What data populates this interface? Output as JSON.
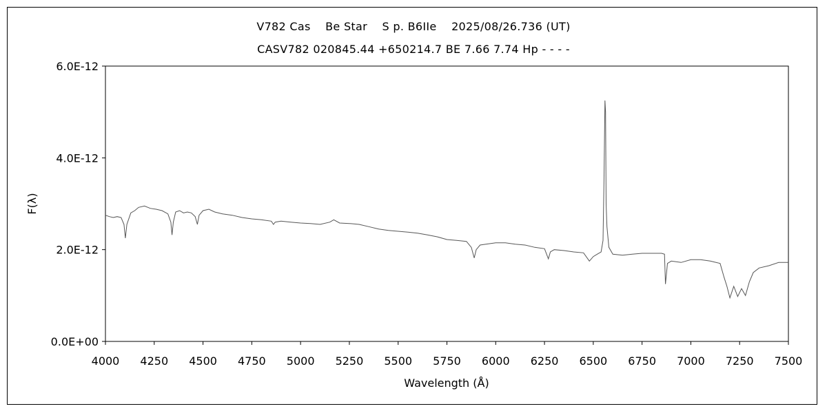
{
  "chart_data": {
    "type": "line",
    "title": "V782 Cas    Be Star    S p. B6IIe    2025/08/26.736 (UT)",
    "subtitle": "CASV782 020845.44 +650214.7 BE 7.66 7.74 Hp - - - -",
    "xlabel": "Wavelength (Å)",
    "ylabel": "F(λ)",
    "xlim": [
      4000,
      7500
    ],
    "ylim": [
      0,
      6e-12
    ],
    "xticks": [
      4000,
      4250,
      4500,
      4750,
      5000,
      5250,
      5500,
      5750,
      6000,
      6250,
      6500,
      6750,
      7000,
      7250,
      7500
    ],
    "xtick_labels": [
      "4000",
      "4250",
      "4500",
      "4750",
      "5000",
      "5250",
      "5500",
      "5750",
      "6000",
      "6250",
      "6500",
      "6750",
      "7000",
      "7250",
      "7500"
    ],
    "yticks": [
      0,
      2e-12,
      4e-12,
      6e-12
    ],
    "ytick_labels": [
      "0.0E+00",
      "2.0E-12",
      "4.0E-12",
      "6.0E-12"
    ],
    "grid": false,
    "legend": "none",
    "series": [
      {
        "color": "#555555",
        "x": [
          4000,
          4020,
          4040,
          4060,
          4080,
          4095,
          4102,
          4110,
          4130,
          4150,
          4170,
          4200,
          4230,
          4260,
          4290,
          4320,
          4335,
          4341,
          4348,
          4360,
          4380,
          4400,
          4420,
          4440,
          4460,
          4471,
          4480,
          4500,
          4530,
          4560,
          4600,
          4650,
          4700,
          4750,
          4800,
          4850,
          4861,
          4870,
          4900,
          4950,
          5000,
          5050,
          5100,
          5150,
          5170,
          5200,
          5250,
          5300,
          5350,
          5400,
          5450,
          5500,
          5550,
          5600,
          5650,
          5700,
          5750,
          5800,
          5850,
          5875,
          5890,
          5900,
          5920,
          5950,
          6000,
          6050,
          6100,
          6150,
          6200,
          6250,
          6270,
          6280,
          6300,
          6350,
          6400,
          6450,
          6480,
          6500,
          6520,
          6540,
          6550,
          6555,
          6560,
          6563,
          6566,
          6570,
          6580,
          6600,
          6650,
          6700,
          6750,
          6800,
          6850,
          6865,
          6870,
          6880,
          6900,
          6950,
          7000,
          7050,
          7100,
          7150,
          7170,
          7185,
          7200,
          7220,
          7240,
          7260,
          7280,
          7300,
          7320,
          7350,
          7400,
          7450,
          7500
        ],
        "y": [
          2.75e-12,
          2.72e-12,
          2.7e-12,
          2.72e-12,
          2.7e-12,
          2.55e-12,
          2.25e-12,
          2.55e-12,
          2.8e-12,
          2.85e-12,
          2.92e-12,
          2.95e-12,
          2.9e-12,
          2.88e-12,
          2.85e-12,
          2.78e-12,
          2.6e-12,
          2.32e-12,
          2.6e-12,
          2.82e-12,
          2.85e-12,
          2.8e-12,
          2.82e-12,
          2.8e-12,
          2.72e-12,
          2.55e-12,
          2.75e-12,
          2.85e-12,
          2.88e-12,
          2.82e-12,
          2.78e-12,
          2.75e-12,
          2.7e-12,
          2.67e-12,
          2.65e-12,
          2.62e-12,
          2.55e-12,
          2.6e-12,
          2.62e-12,
          2.6e-12,
          2.58e-12,
          2.57e-12,
          2.55e-12,
          2.6e-12,
          2.65e-12,
          2.58e-12,
          2.57e-12,
          2.55e-12,
          2.5e-12,
          2.45e-12,
          2.42e-12,
          2.4e-12,
          2.38e-12,
          2.36e-12,
          2.32e-12,
          2.28e-12,
          2.22e-12,
          2.2e-12,
          2.18e-12,
          2.05e-12,
          1.82e-12,
          2e-12,
          2.1e-12,
          2.12e-12,
          2.15e-12,
          2.15e-12,
          2.12e-12,
          2.1e-12,
          2.05e-12,
          2.02e-12,
          1.8e-12,
          1.95e-12,
          2e-12,
          1.98e-12,
          1.95e-12,
          1.93e-12,
          1.75e-12,
          1.85e-12,
          1.9e-12,
          1.95e-12,
          2.2e-12,
          3.5e-12,
          5.25e-12,
          5e-12,
          3e-12,
          2.5e-12,
          2.05e-12,
          1.9e-12,
          1.88e-12,
          1.9e-12,
          1.92e-12,
          1.92e-12,
          1.92e-12,
          1.9e-12,
          1.25e-12,
          1.7e-12,
          1.75e-12,
          1.72e-12,
          1.78e-12,
          1.78e-12,
          1.75e-12,
          1.7e-12,
          1.4e-12,
          1.2e-12,
          9.5e-13,
          1.2e-12,
          9.8e-13,
          1.15e-12,
          1e-12,
          1.3e-12,
          1.5e-12,
          1.6e-12,
          1.65e-12,
          1.72e-12,
          1.72e-12
        ]
      }
    ]
  }
}
